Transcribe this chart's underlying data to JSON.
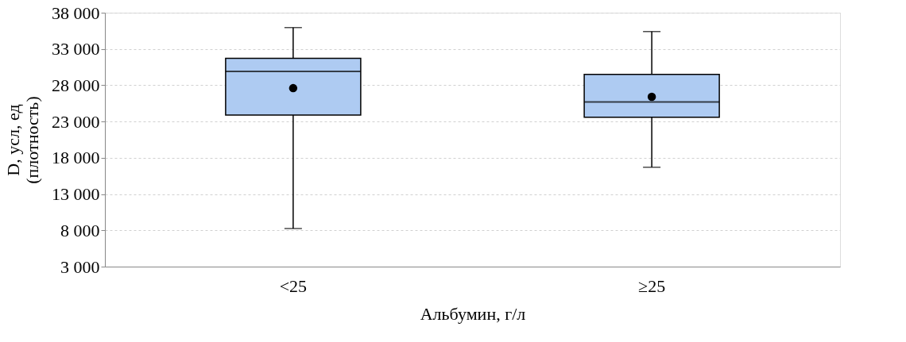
{
  "chart_data": {
    "type": "box",
    "xlabel": "Альбумин, г/л",
    "ylabel": "D, усл, ед\n(плотность)",
    "categories": [
      "<25",
      "≥25"
    ],
    "color": "#aecbf2",
    "boxes": [
      {
        "low": 8250,
        "q1": 23900,
        "median": 29900,
        "q3": 31700,
        "high": 35950,
        "mean": 27600
      },
      {
        "low": 16700,
        "q1": 23600,
        "median": 25700,
        "q3": 29500,
        "high": 35400,
        "mean": 26400
      }
    ],
    "ylim": [
      3000,
      38000
    ],
    "yticks": [
      {
        "value": 3000,
        "label": "3 000"
      },
      {
        "value": 8000,
        "label": "8 000"
      },
      {
        "value": 13000,
        "label": "13 000"
      },
      {
        "value": 18000,
        "label": "18 000"
      },
      {
        "value": 23000,
        "label": "23 000"
      },
      {
        "value": 28000,
        "label": "28 000"
      },
      {
        "value": 33000,
        "label": "33 000"
      },
      {
        "value": 38000,
        "label": "38 000"
      }
    ],
    "grid": "y"
  }
}
